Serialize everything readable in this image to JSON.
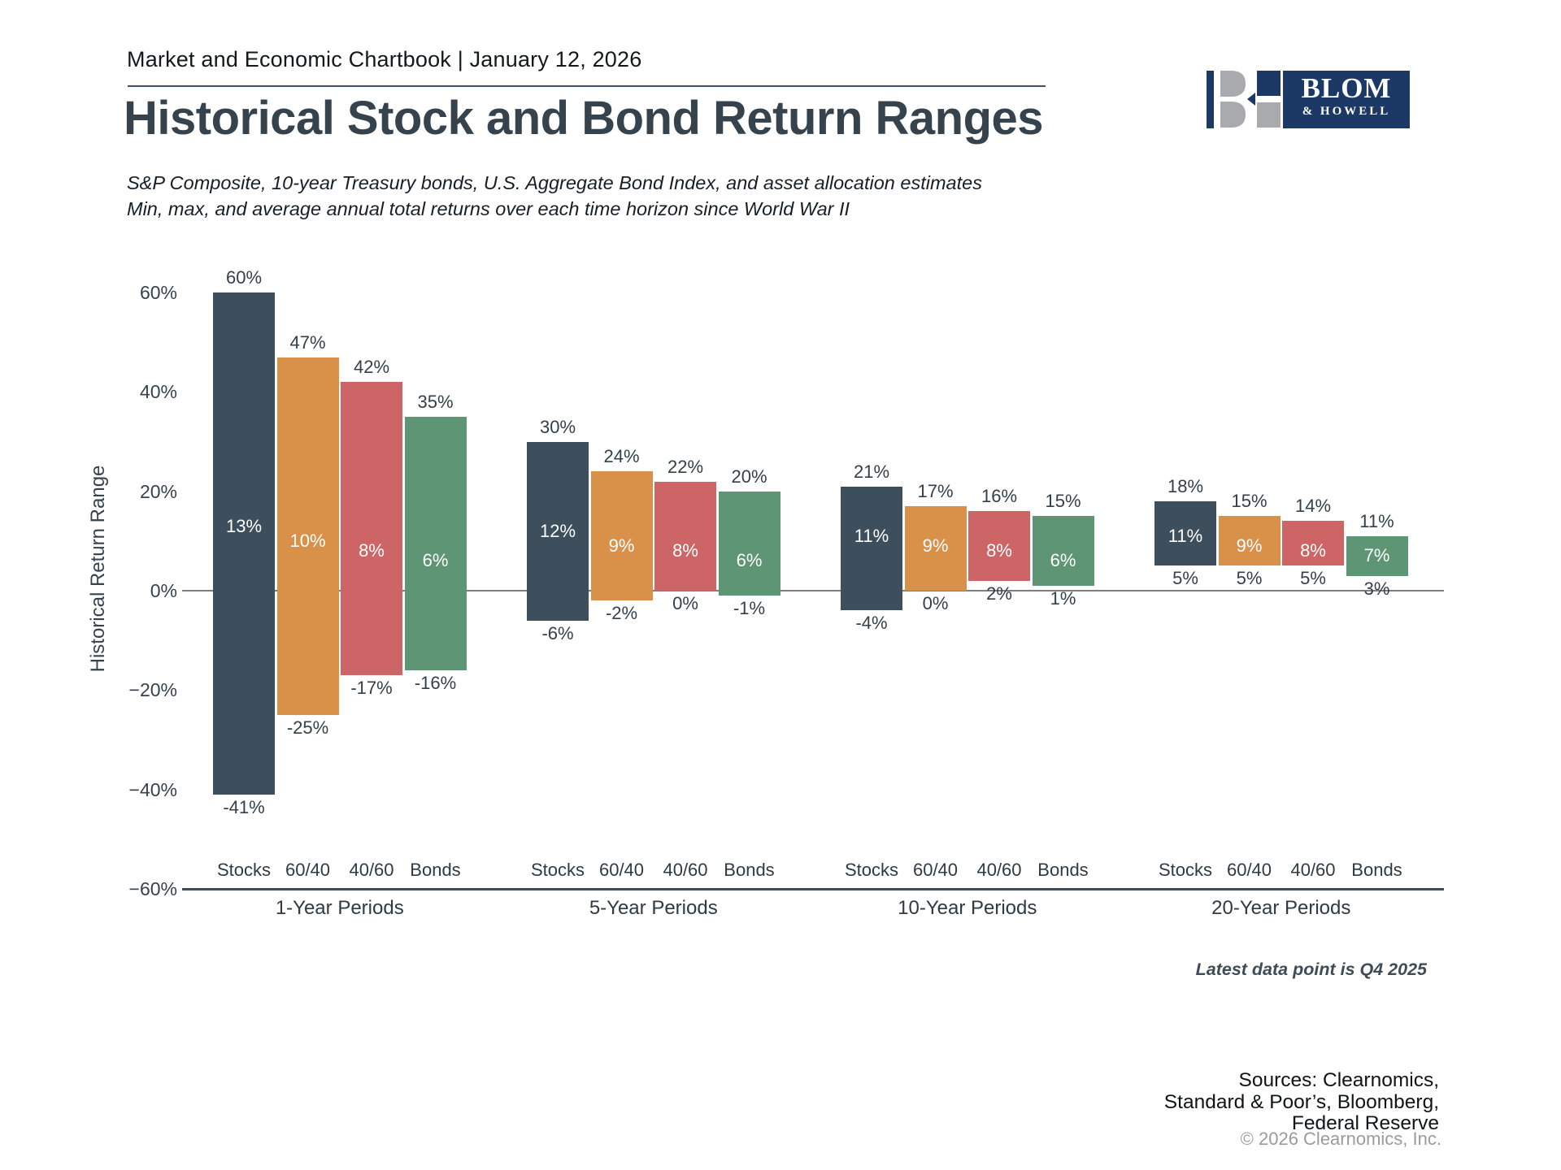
{
  "header": {
    "chartbook_line": "Market and Economic Chartbook | January 12, 2026"
  },
  "logo": {
    "name_top": "BLOM",
    "name_bottom": "& HOWELL"
  },
  "page_title": "Historical Stock and Bond Return Ranges",
  "subtitle_line1": "S&P Composite, 10-year Treasury bonds, U.S. Aggregate Bond Index, and asset allocation estimates",
  "subtitle_line2": "Min, max, and average annual total returns over each time horizon since World War II",
  "chart_data": {
    "type": "bar",
    "subtype": "floating-range-bars-min-avg-max",
    "title": "Historical Stock and Bond Return Ranges",
    "ylabel": "Historical Return Range",
    "ylim": [
      -60,
      60
    ],
    "grid": false,
    "legend_position": "none",
    "yticks": [
      {
        "label": "60%",
        "value": 60
      },
      {
        "label": "40%",
        "value": 40
      },
      {
        "label": "20%",
        "value": 20
      },
      {
        "label": "0%",
        "value": 0
      },
      {
        "label": "−20%",
        "value": -20
      },
      {
        "label": "−40%",
        "value": -40
      },
      {
        "label": "−60%",
        "value": -60
      }
    ],
    "series_labels": [
      "Stocks",
      "60/40",
      "40/60",
      "Bonds"
    ],
    "series_colors": [
      "#3d4e5d",
      "#d9914a",
      "#cd6566",
      "#5e9574"
    ],
    "groups": [
      {
        "label": "1-Year Periods",
        "bars": [
          {
            "name": "Stocks",
            "max": 60,
            "avg": 13,
            "min": -41
          },
          {
            "name": "60/40",
            "max": 47,
            "avg": 10,
            "min": -25
          },
          {
            "name": "40/60",
            "max": 42,
            "avg": 8,
            "min": -17
          },
          {
            "name": "Bonds",
            "max": 35,
            "avg": 6,
            "min": -16
          }
        ]
      },
      {
        "label": "5-Year Periods",
        "bars": [
          {
            "name": "Stocks",
            "max": 30,
            "avg": 12,
            "min": -6
          },
          {
            "name": "60/40",
            "max": 24,
            "avg": 9,
            "min": -2
          },
          {
            "name": "40/60",
            "max": 22,
            "avg": 8,
            "min": 0
          },
          {
            "name": "Bonds",
            "max": 20,
            "avg": 6,
            "min": -1
          }
        ]
      },
      {
        "label": "10-Year Periods",
        "bars": [
          {
            "name": "Stocks",
            "max": 21,
            "avg": 11,
            "min": -4
          },
          {
            "name": "60/40",
            "max": 17,
            "avg": 9,
            "min": 0
          },
          {
            "name": "40/60",
            "max": 16,
            "avg": 8,
            "min": 2
          },
          {
            "name": "Bonds",
            "max": 15,
            "avg": 6,
            "min": 1
          }
        ]
      },
      {
        "label": "20-Year Periods",
        "bars": [
          {
            "name": "Stocks",
            "max": 18,
            "avg": 11,
            "min": 5
          },
          {
            "name": "60/40",
            "max": 15,
            "avg": 9,
            "min": 5
          },
          {
            "name": "40/60",
            "max": 14,
            "avg": 8,
            "min": 5
          },
          {
            "name": "Bonds",
            "max": 11,
            "avg": 7,
            "min": 3
          }
        ]
      }
    ]
  },
  "annotations": {
    "latest_data_point": "Latest data point is Q4 2025"
  },
  "footer": {
    "sources": [
      "Sources: Clearnomics,",
      "Standard & Poor’s, Bloomberg,",
      "Federal Reserve"
    ],
    "copyright": "© 2026 Clearnomics, Inc."
  },
  "colors": {
    "stocks": "#3d4e5d",
    "sixty_forty": "#d9914a",
    "forty_sixty": "#cd6566",
    "bonds": "#5e9574",
    "zero_line": "#7e7e7e",
    "axis_line": "#3f4c57",
    "divider": "#3c5069",
    "logo_navy": "#1c3966",
    "logo_gray": "#a8aaad"
  }
}
